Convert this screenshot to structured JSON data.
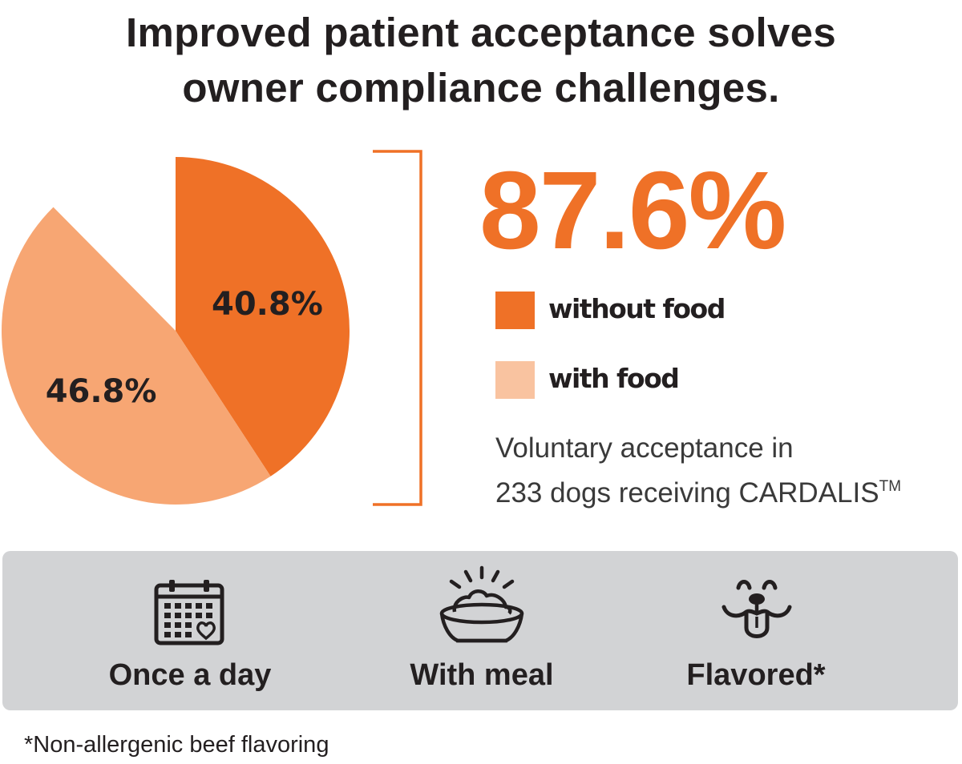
{
  "title": {
    "line1": "Improved patient acceptance solves",
    "line2": "owner compliance challenges."
  },
  "colors": {
    "accent": "#ef7127",
    "light": "#f7a673",
    "legend_light": "#f9c3a0",
    "panel": "#d2d3d5",
    "text": "#231f20"
  },
  "chart_data": {
    "type": "pie",
    "total_label": "87.6%",
    "slices": [
      {
        "name": "without food",
        "value": 40.8,
        "label": "40.8%",
        "color": "#ef7127"
      },
      {
        "name": "with food",
        "value": 46.8,
        "label": "46.8%",
        "color": "#f7a673"
      }
    ],
    "legend": [
      "without food",
      "with food"
    ],
    "legend_placement": "right"
  },
  "caption": {
    "line1": "Voluntary acceptance in",
    "line2": "233 dogs receiving CARDALIS",
    "trademark": "TM"
  },
  "features": [
    {
      "label": "Once a day",
      "icon": "calendar-heart-icon"
    },
    {
      "label": "With meal",
      "icon": "food-bowl-icon"
    },
    {
      "label": "Flavored*",
      "icon": "dog-tongue-icon"
    }
  ],
  "footnote": "*Non-allergenic beef flavoring"
}
